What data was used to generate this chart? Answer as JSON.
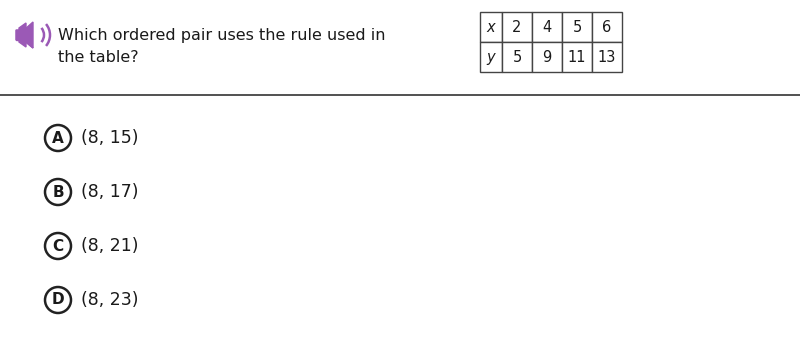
{
  "question_text_line1": "Which ordered pair uses the rule used in",
  "question_text_line2": "the table?",
  "table": {
    "x_label": "x",
    "y_label": "y",
    "x_values": [
      "2",
      "4",
      "5",
      "6"
    ],
    "y_values": [
      "5",
      "9",
      "11",
      "13"
    ]
  },
  "choices": [
    {
      "label": "A",
      "text": "(8, 15)"
    },
    {
      "label": "B",
      "text": "(8, 17)"
    },
    {
      "label": "C",
      "text": "(8, 21)"
    },
    {
      "label": "D",
      "text": "(8, 23)"
    }
  ],
  "speaker_icon_color": "#9b59b6",
  "background_color": "#ffffff",
  "text_color": "#1a1a1a",
  "table_border_color": "#444444",
  "circle_edge_color": "#222222",
  "font_size_question": 11.5,
  "font_size_table": 10.5,
  "font_size_choices": 12.5,
  "font_size_circle_label": 11
}
